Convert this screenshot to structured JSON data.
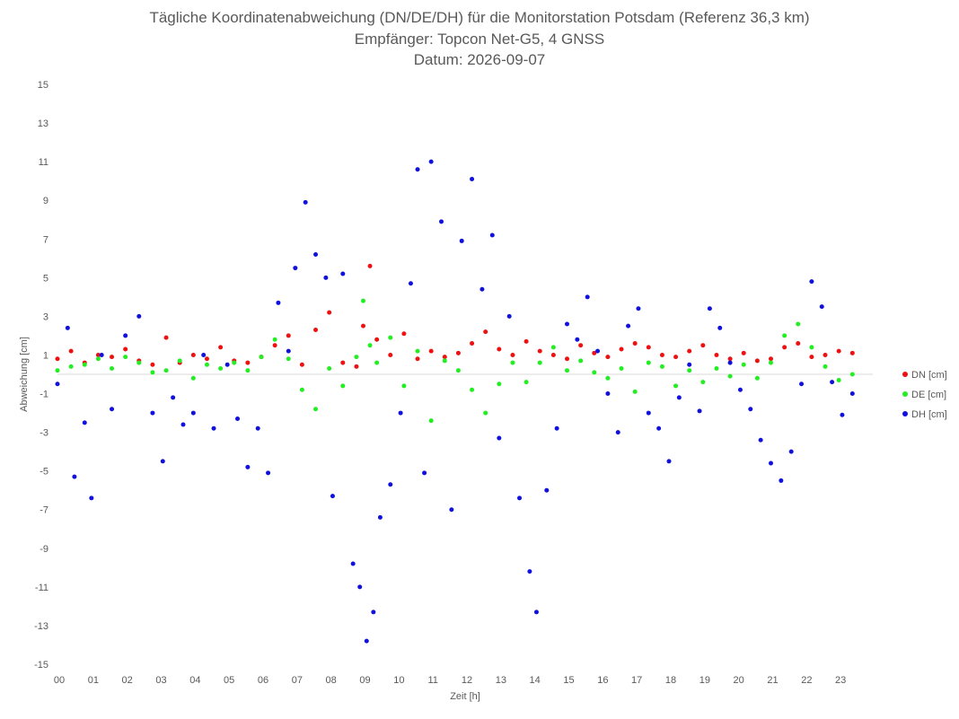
{
  "chart_data": {
    "type": "scatter",
    "title": "Tägliche Koordinatenabweichung (DN/DE/DH) für die Monitorstation Potsdam (Referenz 36,3 km)",
    "subtitle": [
      "Empfänger: Topcon Net-G5, 4 GNSS",
      "Datum: 2026-09-07"
    ],
    "xlabel": "Zeit [h]",
    "ylabel": "Abweichung [cm]",
    "xlim": [
      0,
      24
    ],
    "ylim": [
      -15,
      15
    ],
    "x_ticks": [
      "00",
      "01",
      "02",
      "03",
      "04",
      "05",
      "06",
      "07",
      "08",
      "09",
      "10",
      "11",
      "12",
      "13",
      "14",
      "15",
      "16",
      "17",
      "18",
      "19",
      "20",
      "21",
      "22",
      "23"
    ],
    "y_ticks": [
      15,
      13,
      11,
      9,
      7,
      5,
      3,
      1,
      -1,
      -3,
      -5,
      -7,
      -9,
      -11,
      -13,
      -15
    ],
    "legend_position": "right",
    "grid": "zero-line only",
    "series": [
      {
        "name": "DN [cm]",
        "color": "#ee1111",
        "x": [
          0.0,
          0.4,
          0.8,
          1.2,
          1.6,
          2.0,
          2.4,
          2.8,
          3.2,
          3.6,
          4.0,
          4.4,
          4.8,
          5.2,
          5.6,
          6.0,
          6.4,
          6.8,
          7.2,
          7.6,
          8.0,
          8.4,
          8.8,
          9.0,
          9.2,
          9.4,
          9.8,
          10.2,
          10.6,
          11.0,
          11.4,
          11.8,
          12.2,
          12.6,
          13.0,
          13.4,
          13.8,
          14.2,
          14.6,
          15.0,
          15.4,
          15.8,
          16.2,
          16.6,
          17.0,
          17.4,
          17.8,
          18.2,
          18.6,
          19.0,
          19.4,
          19.8,
          20.2,
          20.6,
          21.0,
          21.4,
          21.8,
          22.2,
          22.6,
          23.0,
          23.4
        ],
        "y": [
          0.8,
          1.2,
          0.6,
          1.0,
          0.9,
          1.3,
          0.7,
          0.5,
          1.9,
          0.6,
          1.0,
          0.8,
          1.4,
          0.7,
          0.6,
          0.9,
          1.5,
          2.0,
          0.5,
          2.3,
          3.2,
          0.6,
          0.4,
          2.5,
          5.6,
          1.8,
          1.0,
          2.1,
          0.8,
          1.2,
          0.9,
          1.1,
          1.6,
          2.2,
          1.3,
          1.0,
          1.7,
          1.2,
          1.0,
          0.8,
          1.5,
          1.1,
          0.9,
          1.3,
          1.6,
          1.4,
          1.0,
          0.9,
          1.2,
          1.5,
          1.0,
          0.8,
          1.1,
          0.7,
          0.8,
          1.4,
          1.6,
          0.9,
          1.0,
          1.2,
          1.1
        ]
      },
      {
        "name": "DE [cm]",
        "color": "#22ee22",
        "x": [
          0.0,
          0.4,
          0.8,
          1.2,
          1.6,
          2.0,
          2.4,
          2.8,
          3.2,
          3.6,
          4.0,
          4.4,
          4.8,
          5.2,
          5.6,
          6.0,
          6.4,
          6.8,
          7.2,
          7.6,
          8.0,
          8.4,
          8.8,
          9.0,
          9.2,
          9.4,
          9.8,
          10.2,
          10.6,
          11.0,
          11.4,
          11.8,
          12.2,
          12.6,
          13.0,
          13.4,
          13.8,
          14.2,
          14.6,
          15.0,
          15.4,
          15.8,
          16.2,
          16.6,
          17.0,
          17.4,
          17.8,
          18.2,
          18.6,
          19.0,
          19.4,
          19.8,
          20.2,
          20.6,
          21.0,
          21.4,
          21.8,
          22.2,
          22.6,
          23.0,
          23.4
        ],
        "y": [
          0.2,
          0.4,
          0.5,
          0.8,
          0.3,
          0.9,
          0.6,
          0.1,
          0.2,
          0.7,
          -0.2,
          0.5,
          0.3,
          0.6,
          0.2,
          0.9,
          1.8,
          0.8,
          -0.8,
          -1.8,
          0.3,
          -0.6,
          0.9,
          3.8,
          1.5,
          0.6,
          1.9,
          -0.6,
          1.2,
          -2.4,
          0.7,
          0.2,
          -0.8,
          -2.0,
          -0.5,
          0.6,
          -0.4,
          0.6,
          1.4,
          0.2,
          0.7,
          0.1,
          -0.2,
          0.3,
          -0.9,
          0.6,
          0.4,
          -0.6,
          0.2,
          -0.4,
          0.3,
          -0.1,
          0.5,
          -0.2,
          0.6,
          2.0,
          2.6,
          1.4,
          0.4,
          -0.3,
          0.0
        ]
      },
      {
        "name": "DH [cm]",
        "color": "#1111dd",
        "x": [
          0.0,
          0.3,
          0.5,
          0.8,
          1.0,
          1.3,
          1.6,
          2.0,
          2.4,
          2.8,
          3.1,
          3.4,
          3.7,
          4.0,
          4.3,
          4.6,
          5.0,
          5.3,
          5.6,
          5.9,
          6.2,
          6.5,
          6.8,
          7.0,
          7.3,
          7.6,
          7.9,
          8.1,
          8.4,
          8.7,
          8.9,
          9.1,
          9.3,
          9.5,
          9.8,
          10.1,
          10.4,
          10.6,
          10.8,
          11.0,
          11.3,
          11.6,
          11.9,
          12.2,
          12.5,
          12.8,
          13.0,
          13.3,
          13.6,
          13.9,
          14.1,
          14.4,
          14.7,
          15.0,
          15.3,
          15.6,
          15.9,
          16.2,
          16.5,
          16.8,
          17.1,
          17.4,
          17.7,
          18.0,
          18.3,
          18.6,
          18.9,
          19.2,
          19.5,
          19.8,
          20.1,
          20.4,
          20.7,
          21.0,
          21.3,
          21.6,
          21.9,
          22.2,
          22.5,
          22.8,
          23.1,
          23.4
        ],
        "y": [
          -0.5,
          2.4,
          -5.3,
          -2.5,
          -6.4,
          1.0,
          -1.8,
          2.0,
          3.0,
          -2.0,
          -4.5,
          -1.2,
          -2.6,
          -2.0,
          1.0,
          -2.8,
          0.5,
          -2.3,
          -4.8,
          -2.8,
          -5.1,
          3.7,
          1.2,
          5.5,
          8.9,
          6.2,
          5.0,
          -6.3,
          5.2,
          -9.8,
          -11.0,
          -13.8,
          -12.3,
          -7.4,
          -5.7,
          -2.0,
          4.7,
          10.6,
          -5.1,
          11.0,
          7.9,
          -7.0,
          6.9,
          10.1,
          4.4,
          7.2,
          -3.3,
          3.0,
          -6.4,
          -10.2,
          -12.3,
          -6.0,
          -2.8,
          2.6,
          1.8,
          4.0,
          1.2,
          -1.0,
          -3.0,
          2.5,
          3.4,
          -2.0,
          -2.8,
          -4.5,
          -1.2,
          0.5,
          -1.9,
          3.4,
          2.4,
          0.6,
          -0.8,
          -1.8,
          -3.4,
          -4.6,
          -5.5,
          -4.0,
          -0.5,
          4.8,
          3.5,
          -0.4,
          -2.1,
          -1.0
        ]
      }
    ]
  }
}
